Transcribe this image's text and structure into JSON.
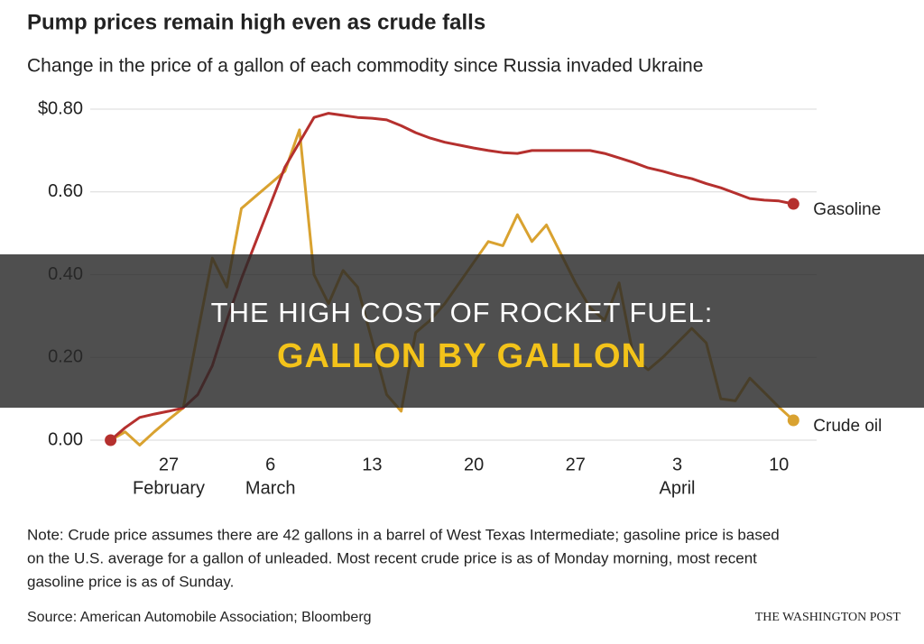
{
  "chart_data": {
    "type": "line",
    "title": "Pump prices remain high even as crude falls",
    "subtitle": "Change in the price of a gallon of each commodity since Russia invaded Ukraine",
    "categories": [
      null,
      null,
      null,
      null,
      "27",
      null,
      null,
      null,
      null,
      null,
      null,
      "6",
      null,
      null,
      null,
      null,
      null,
      null,
      "13",
      null,
      null,
      null,
      null,
      null,
      null,
      "20",
      null,
      null,
      null,
      null,
      null,
      null,
      "27",
      null,
      null,
      null,
      null,
      null,
      null,
      "3",
      null,
      null,
      null,
      null,
      null,
      null,
      "10",
      null
    ],
    "month_labels": [
      null,
      null,
      null,
      null,
      "February",
      null,
      null,
      null,
      null,
      null,
      null,
      "March",
      null,
      null,
      null,
      null,
      null,
      null,
      null,
      null,
      null,
      null,
      null,
      null,
      null,
      null,
      null,
      null,
      null,
      null,
      null,
      null,
      null,
      null,
      null,
      null,
      null,
      null,
      null,
      "April",
      null,
      null,
      null,
      null,
      null,
      null,
      null,
      null
    ],
    "series": [
      {
        "name": "Gasoline",
        "color": "#b5302e",
        "values": [
          0,
          0.03,
          0.055,
          0.063,
          0.07,
          0.078,
          0.11,
          0.18,
          0.29,
          0.39,
          0.48,
          0.57,
          0.66,
          0.72,
          0.78,
          0.79,
          0.785,
          0.78,
          0.778,
          0.774,
          0.76,
          0.743,
          0.73,
          0.72,
          0.713,
          0.706,
          0.7,
          0.695,
          0.693,
          0.7,
          0.7,
          0.7,
          0.7,
          0.7,
          0.693,
          0.682,
          0.671,
          0.658,
          0.65,
          0.64,
          0.632,
          0.62,
          0.61,
          0.597,
          0.584,
          0.58,
          0.578,
          0.571
        ]
      },
      {
        "name": "Crude oil",
        "color": "#d9a230",
        "values": [
          0,
          0.02,
          -0.012,
          0.02,
          0.05,
          0.078,
          0.26,
          0.44,
          0.37,
          0.56,
          0.59,
          0.62,
          0.65,
          0.75,
          0.4,
          0.33,
          0.41,
          0.37,
          0.24,
          0.11,
          0.07,
          0.26,
          0.29,
          0.33,
          0.38,
          0.43,
          0.48,
          0.47,
          0.545,
          0.48,
          0.52,
          0.45,
          0.38,
          0.32,
          0.29,
          0.38,
          0.2,
          0.17,
          0.2,
          0.235,
          0.27,
          0.235,
          0.1,
          0.095,
          0.15,
          0.115,
          0.08,
          0.048
        ]
      }
    ],
    "ylim": [
      -0.03,
      0.8
    ],
    "yticks": [
      {
        "value": 0,
        "label": "0.00"
      },
      {
        "value": 0.2,
        "label": "0.20"
      },
      {
        "value": 0.4,
        "label": "0.40"
      },
      {
        "value": 0.6,
        "label": "0.60"
      },
      {
        "value": 0.8,
        "label": "$0.80"
      }
    ],
    "grid": true,
    "note": [
      "Note: Crude price assumes there are 42 gallons in a barrel of West Texas Intermediate; gasoline price is based",
      "on the U.S. average for a gallon of unleaded. Most recent crude price is as of Monday morning, most recent",
      "gasoline price is as of Sunday."
    ],
    "source": "Source: American Automobile Association; Bloomberg",
    "credit": "THE WASHINGTON POST"
  },
  "banner": {
    "line1": "THE HIGH COST OF ROCKET FUEL:",
    "line2": "GALLON BY GALLON"
  }
}
